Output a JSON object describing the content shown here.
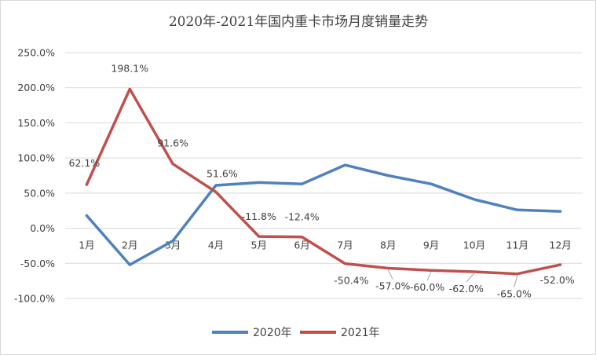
{
  "chart_data": {
    "type": "line",
    "title": "2020年-2021年国内重卡市场月度销量走势",
    "categories": [
      "1月",
      "2月",
      "3月",
      "4月",
      "5月",
      "6月",
      "7月",
      "8月",
      "9月",
      "10月",
      "11月",
      "12月"
    ],
    "y_unit": "%",
    "ylim": [
      -100,
      250
    ],
    "y_ticks": [
      "250.0%",
      "200.0%",
      "150.0%",
      "100.0%",
      "50.0%",
      "0.0%",
      "-50.0%",
      "-100.0%"
    ],
    "y_tick_values": [
      250,
      200,
      150,
      100,
      50,
      0,
      -50,
      -100
    ],
    "grid": true,
    "legend_position": "bottom",
    "series": [
      {
        "name": "2020年",
        "color": "#4f81bd",
        "values": [
          18,
          -52,
          -18,
          61,
          65,
          63,
          90,
          75,
          63,
          41,
          26,
          24
        ],
        "labels": []
      },
      {
        "name": "2021年",
        "color": "#c0504d",
        "values": [
          62.1,
          198.1,
          91.6,
          51.6,
          -11.8,
          -12.4,
          -50.4,
          -57.0,
          -60.0,
          -62.0,
          -65.0,
          -52.0
        ],
        "labels": [
          "62.1%",
          "198.1%",
          "91.6%",
          "51.6%",
          "-11.8%",
          "-12.4%",
          "-50.4%",
          "-57.0%",
          "-60.0%",
          "-62.0%",
          "-65.0%",
          "-52.0%"
        ]
      }
    ]
  }
}
